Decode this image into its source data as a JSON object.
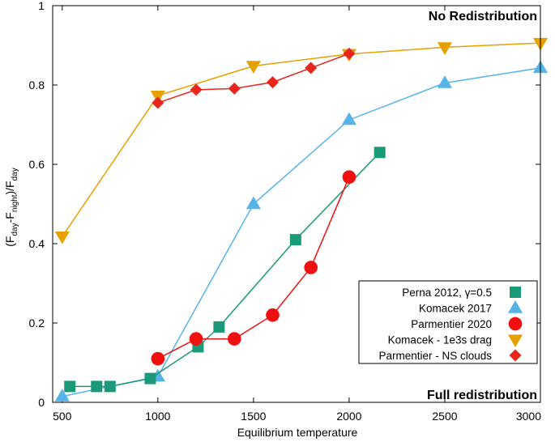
{
  "chart_data": {
    "type": "line",
    "xlabel": "Equilibrium temperature",
    "ylabel": {
      "main": "(F",
      "sub1": "day",
      "mid": "-F",
      "sub2": "night",
      "end": ")/F",
      "sub3": "day"
    },
    "xlim": [
      450,
      3000
    ],
    "ylim": [
      0,
      1
    ],
    "xticks": [
      500,
      1000,
      1500,
      2000,
      2500,
      3000
    ],
    "yticks": [
      0,
      0.2,
      0.4,
      0.6,
      0.8,
      1
    ],
    "ytick_labels": [
      "0",
      "0.2",
      "0.4",
      "0.6",
      "0.8",
      "1"
    ],
    "legend_position": "bottom-right",
    "annotations": [
      {
        "text": "No Redistribution",
        "position": "top-right",
        "color": "#e8141c"
      },
      {
        "text": "Full redistribution",
        "position": "bottom-right",
        "color": "#e8141c"
      }
    ],
    "series": [
      {
        "name": "Perna 2012, γ=0.5",
        "color": "#1a9a78",
        "marker": "square",
        "points": [
          [
            540,
            0.04
          ],
          [
            680,
            0.04
          ],
          [
            750,
            0.04
          ],
          [
            960,
            0.06
          ],
          [
            1210,
            0.14
          ],
          [
            1320,
            0.19
          ],
          [
            1720,
            0.41
          ],
          [
            2160,
            0.63
          ]
        ]
      },
      {
        "name": "Komacek 2017",
        "color": "#56b4e9",
        "marker": "triangle-up",
        "points": [
          [
            500,
            0.015
          ],
          [
            1000,
            0.065
          ],
          [
            1500,
            0.5
          ],
          [
            2000,
            0.712
          ],
          [
            2500,
            0.805
          ],
          [
            3000,
            0.843
          ]
        ]
      },
      {
        "name": "Parmentier 2020",
        "color": "#f01010",
        "marker": "circle",
        "points": [
          [
            1000,
            0.11
          ],
          [
            1200,
            0.16
          ],
          [
            1400,
            0.16
          ],
          [
            1600,
            0.22
          ],
          [
            1800,
            0.34
          ],
          [
            2000,
            0.568
          ]
        ]
      },
      {
        "name": "Komacek - 1e3s drag",
        "color": "#e6a000",
        "marker": "triangle-down",
        "points": [
          [
            500,
            0.418
          ],
          [
            1000,
            0.773
          ],
          [
            1500,
            0.848
          ],
          [
            2000,
            0.878
          ],
          [
            2500,
            0.895
          ],
          [
            3000,
            0.906
          ]
        ]
      },
      {
        "name": "Parmentier - NS clouds",
        "color": "#e8261c",
        "marker": "diamond",
        "points": [
          [
            1000,
            0.755
          ],
          [
            1200,
            0.788
          ],
          [
            1400,
            0.791
          ],
          [
            1600,
            0.807
          ],
          [
            1800,
            0.843
          ],
          [
            2000,
            0.879
          ]
        ]
      }
    ]
  }
}
